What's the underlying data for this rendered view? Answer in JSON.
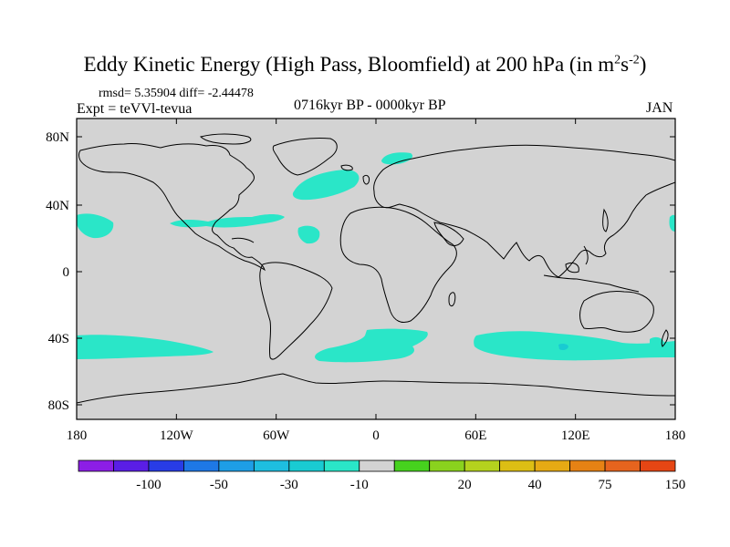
{
  "title": {
    "main": "Eddy Kinetic Energy (High Pass, Bloomfield) at 200 hPa (in m",
    "sup1": "2",
    "unit_s": "s",
    "sup2": "-2",
    "close": ")"
  },
  "stats": "rmsd= 5.35904  diff= -2.44478",
  "experiment": "Expt = teVVl-tevua",
  "period": "0716kyr BP - 0000kyr BP",
  "month": "JAN",
  "map": {
    "land_color": "#d3d3d3",
    "ocean_color": "#d3d3d3",
    "anomaly_color": "#2ae6c8",
    "anomaly_dark_color": "#19cbd2",
    "lat_ticks": [
      "80N",
      "40N",
      "0",
      "40S",
      "80S"
    ],
    "lon_ticks": [
      "180",
      "120W",
      "60W",
      "0",
      "60E",
      "120E",
      "180"
    ]
  },
  "colorbar": {
    "colors": [
      "#8c1ee6",
      "#5a1ee6",
      "#283ce6",
      "#1e78e6",
      "#1e9ee6",
      "#1ebee0",
      "#19cbd2",
      "#2ae6c8",
      "#d3d3d3",
      "#46d21e",
      "#8ad21e",
      "#b4d21e",
      "#dcbe14",
      "#e6aa14",
      "#e68214",
      "#e6641e",
      "#e64614"
    ],
    "labels": [
      "-100",
      "-50",
      "-30",
      "-10",
      "20",
      "40",
      "75",
      "150"
    ]
  }
}
